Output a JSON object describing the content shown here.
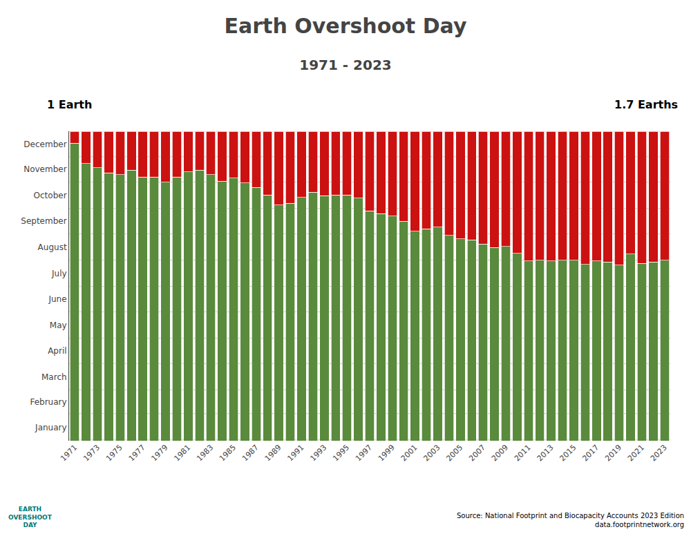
{
  "chart_data": {
    "type": "bar",
    "title": "Earth Overshoot Day",
    "subtitle": "1971 - 2023",
    "stacked": true,
    "grid": true,
    "categories": [
      "1971",
      null,
      "1973",
      null,
      "1975",
      null,
      "1977",
      null,
      "1979",
      null,
      "1981",
      null,
      "1983",
      null,
      "1985",
      null,
      "1987",
      null,
      "1989",
      null,
      "1991",
      null,
      "1993",
      null,
      "1995",
      null,
      "1997",
      null,
      "1999",
      null,
      "2001",
      null,
      "2003",
      null,
      "2005",
      null,
      "2007",
      null,
      "2009",
      null,
      "2011",
      null,
      "2013",
      null,
      "2015",
      null,
      "2017",
      null,
      "2019",
      null,
      "2021",
      null,
      "2023"
    ],
    "series": [
      {
        "color": "#5a8a3c",
        "values": [
          351,
          327,
          322,
          316,
          314,
          319,
          311,
          311,
          305,
          311,
          317,
          319,
          314,
          306,
          310,
          304,
          299,
          290,
          278,
          280,
          287,
          293,
          289,
          290,
          290,
          286,
          271,
          268,
          265,
          259,
          247,
          250,
          252,
          242,
          238,
          237,
          232,
          228,
          229,
          221,
          212,
          213,
          212,
          213,
          213,
          208,
          212,
          211,
          207,
          220,
          209,
          211,
          213
        ]
      },
      {
        "color": "#cc1111",
        "values": [
          14,
          38,
          43,
          49,
          51,
          46,
          54,
          54,
          60,
          54,
          48,
          46,
          51,
          59,
          55,
          61,
          66,
          75,
          87,
          85,
          78,
          72,
          76,
          75,
          75,
          79,
          94,
          97,
          100,
          106,
          118,
          115,
          113,
          123,
          127,
          128,
          133,
          137,
          136,
          144,
          153,
          152,
          153,
          152,
          152,
          157,
          153,
          154,
          158,
          145,
          156,
          154,
          152
        ]
      }
    ],
    "ylim": [
      0,
      365
    ],
    "yticks": [
      {
        "value": 16,
        "label": "January"
      },
      {
        "value": 46,
        "label": "February"
      },
      {
        "value": 75,
        "label": "March"
      },
      {
        "value": 106,
        "label": "April"
      },
      {
        "value": 136,
        "label": "May"
      },
      {
        "value": 167,
        "label": "June"
      },
      {
        "value": 197,
        "label": "July"
      },
      {
        "value": 228,
        "label": "August"
      },
      {
        "value": 259,
        "label": "September"
      },
      {
        "value": 289,
        "label": "October"
      },
      {
        "value": 320,
        "label": "November"
      },
      {
        "value": 350,
        "label": "December"
      }
    ],
    "hlines": [
      1,
      32,
      60,
      91,
      121,
      152,
      182,
      213,
      244,
      274,
      305,
      335,
      365
    ],
    "annotations": [
      {
        "text": "1 Earth"
      },
      {
        "text": "1.7 Earths"
      },
      {
        "text": "Source: National Footprint and Biocapacity Accounts 2023 Edition\ndata.footprintnetwork.org"
      },
      {
        "text": "EARTH\nOVERSHOOT\nDAY",
        "color": "#007a7a"
      }
    ]
  }
}
